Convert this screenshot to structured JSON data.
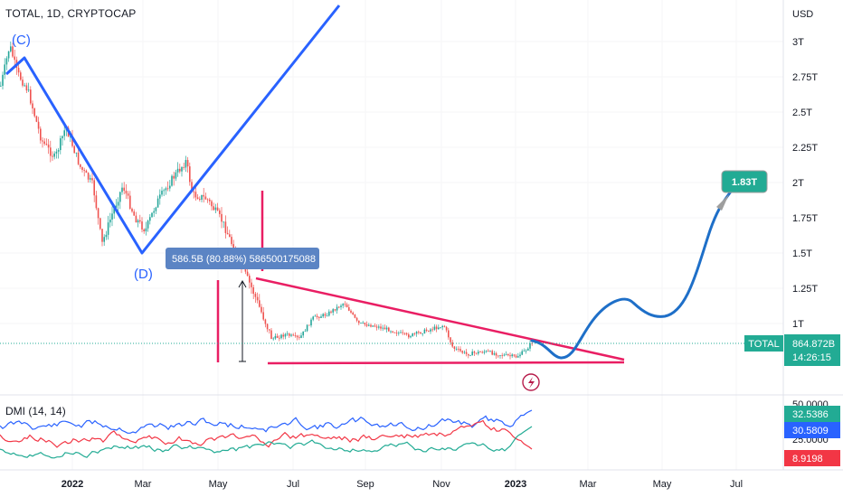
{
  "header": {
    "title": "TOTAL, 1D, CRYPTOCAP"
  },
  "dmi": {
    "title": "DMI (14, 14)"
  },
  "chart_data": {
    "type": "line",
    "currency_label": "USD",
    "price_ticks": [
      "3T",
      "2.75T",
      "2.5T",
      "2.25T",
      "2T",
      "1.75T",
      "1.5T",
      "1.25T",
      "1T"
    ],
    "dmi_ticks": [
      "50.0000",
      "25.0000"
    ],
    "x_ticks": [
      {
        "label": "2022",
        "bold": true
      },
      {
        "label": "Mar",
        "bold": false
      },
      {
        "label": "May",
        "bold": false
      },
      {
        "label": "Jul",
        "bold": false
      },
      {
        "label": "Sep",
        "bold": false
      },
      {
        "label": "Nov",
        "bold": false
      },
      {
        "label": "2023",
        "bold": true
      },
      {
        "label": "Mar",
        "bold": false
      },
      {
        "label": "May",
        "bold": false
      },
      {
        "label": "Jul",
        "bold": false
      }
    ],
    "last_price": {
      "symbol": "TOTAL",
      "value": "864.872B",
      "countdown": "14:26:15"
    },
    "target": {
      "label": "1.83T"
    },
    "measurement": {
      "text": "586.5B (80.88%) 586500175088"
    },
    "waves": [
      {
        "label": "(C)"
      },
      {
        "label": "(D)"
      }
    ],
    "dmi_values": {
      "plus_di": "32.5386",
      "minus_di": "30.5809",
      "adx": "8.9198"
    },
    "colors": {
      "up": "#26a69a",
      "down": "#ef5350",
      "wave": "#2962ff",
      "triangle": "#e91e63",
      "projection": "#1e6fc8",
      "dmi_plus": "#2962ff",
      "dmi_minus": "#f23645",
      "dmi_adx": "#22ab94",
      "target": "#22ab94"
    },
    "price_series_approx": [
      {
        "date": "2021-12-10",
        "value": 2.55
      },
      {
        "date": "2021-12-20",
        "value": 2.4
      },
      {
        "date": "2022-01-05",
        "value": 2.3
      },
      {
        "date": "2022-01-22",
        "value": 1.7
      },
      {
        "date": "2022-02-10",
        "value": 2.05
      },
      {
        "date": "2022-02-25",
        "value": 1.7
      },
      {
        "date": "2022-03-28",
        "value": 2.15
      },
      {
        "date": "2022-04-20",
        "value": 1.85
      },
      {
        "date": "2022-05-12",
        "value": 1.25
      },
      {
        "date": "2022-06-18",
        "value": 0.85
      },
      {
        "date": "2022-08-14",
        "value": 1.18
      },
      {
        "date": "2022-09-20",
        "value": 0.95
      },
      {
        "date": "2022-11-05",
        "value": 1.05
      },
      {
        "date": "2022-11-10",
        "value": 0.8
      },
      {
        "date": "2022-12-31",
        "value": 0.79
      },
      {
        "date": "2023-01-15",
        "value": 0.86
      }
    ],
    "projection_approx": [
      {
        "date": "2023-02-05",
        "value": 0.83
      },
      {
        "date": "2023-03-10",
        "value": 1.17
      },
      {
        "date": "2023-04-10",
        "value": 1.03
      },
      {
        "date": "2023-06-25",
        "value": 1.83
      }
    ]
  }
}
